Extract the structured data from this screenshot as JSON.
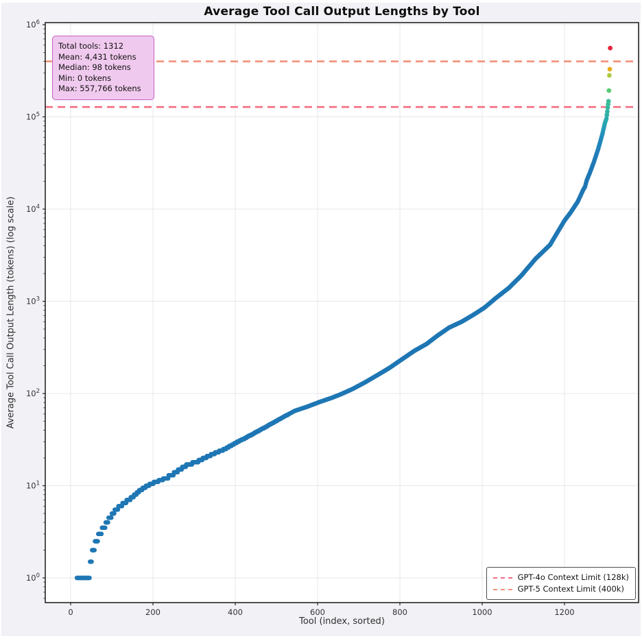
{
  "page": {
    "figure_background": "#f1f1f6",
    "plot_background": "#ffffff"
  },
  "chart_data": {
    "type": "scatter",
    "title": "Average Tool Call Output Lengths by Tool",
    "xlabel": "Tool (index, sorted)",
    "ylabel": "Average Tool Call Output Length (tokens) (log scale)",
    "x_ticks": [
      0,
      200,
      400,
      600,
      800,
      1000,
      1200
    ],
    "y_tick_exponents": [
      0,
      1,
      2,
      3,
      4,
      5,
      6
    ],
    "y_scale": "log",
    "grid": true,
    "xlim": [
      -65.5,
      1376.5
    ],
    "ylim_exponents": [
      -0.268,
      6.022
    ],
    "total_tools": 1312,
    "mean_tokens": 4431,
    "median_tokens": 98,
    "min_tokens": 0,
    "max_tokens": 557766,
    "default_point_color": "#1f77b4",
    "anchors": [
      [
        15,
        1
      ],
      [
        45,
        1
      ],
      [
        48,
        1.5
      ],
      [
        55,
        2
      ],
      [
        62,
        2.5
      ],
      [
        70,
        3
      ],
      [
        80,
        3.5
      ],
      [
        95,
        4.5
      ],
      [
        110,
        5.5
      ],
      [
        130,
        6.5
      ],
      [
        150,
        7.5
      ],
      [
        170,
        9
      ],
      [
        195,
        10.5
      ],
      [
        220,
        11.5
      ],
      [
        245,
        13
      ],
      [
        265,
        15
      ],
      [
        285,
        17
      ],
      [
        305,
        18
      ],
      [
        330,
        20.5
      ],
      [
        355,
        23
      ],
      [
        375,
        25
      ],
      [
        400,
        29
      ],
      [
        425,
        33
      ],
      [
        455,
        39
      ],
      [
        480,
        45
      ],
      [
        515,
        55
      ],
      [
        545,
        65
      ],
      [
        575,
        72
      ],
      [
        605,
        81
      ],
      [
        635,
        90
      ],
      [
        656,
        98
      ],
      [
        685,
        112
      ],
      [
        715,
        132
      ],
      [
        745,
        158
      ],
      [
        775,
        190
      ],
      [
        805,
        235
      ],
      [
        835,
        290
      ],
      [
        865,
        345
      ],
      [
        890,
        420
      ],
      [
        920,
        520
      ],
      [
        950,
        600
      ],
      [
        980,
        720
      ],
      [
        1005,
        850
      ],
      [
        1035,
        1100
      ],
      [
        1065,
        1400
      ],
      [
        1095,
        1900
      ],
      [
        1130,
        2900
      ],
      [
        1165,
        4100
      ],
      [
        1182,
        5500
      ],
      [
        1200,
        7500
      ],
      [
        1215,
        9200
      ],
      [
        1232,
        12000
      ],
      [
        1245,
        16000
      ],
      [
        1250,
        17500
      ],
      [
        1254,
        20500
      ],
      [
        1262,
        25000
      ],
      [
        1272,
        33000
      ],
      [
        1282,
        45000
      ],
      [
        1292,
        65000
      ],
      [
        1298,
        85000
      ],
      [
        1302,
        96000
      ]
    ],
    "special_points": [
      [
        1303,
        105000
      ],
      [
        1304,
        114000
      ],
      [
        1305,
        126000
      ],
      [
        1306,
        137000
      ],
      [
        1307,
        148000
      ],
      [
        1308,
        193000
      ],
      [
        1309,
        282000
      ],
      [
        1310,
        329000
      ],
      [
        1311,
        557766
      ]
    ],
    "color_stops": [
      [
        0.0,
        "#1f77b4"
      ],
      [
        0.05,
        "#1f77b4"
      ],
      [
        0.1,
        "#2287bf"
      ],
      [
        0.145,
        "#27a0b6"
      ],
      [
        0.19,
        "#2eb0a6"
      ],
      [
        0.27,
        "#3cbf97"
      ],
      [
        0.35,
        "#5bca74"
      ],
      [
        0.51,
        "#aecb3a"
      ],
      [
        0.6,
        "#f0a513"
      ],
      [
        1.0,
        "#e8243c"
      ]
    ],
    "reference_lines": [
      {
        "name": "gpt-4o-context-limit",
        "value": 128000,
        "color": "#f36c80",
        "label": "GPT-4o Context Limit (128k)"
      },
      {
        "name": "gpt-5-context-limit",
        "value": 400000,
        "color": "#f29179",
        "label": "GPT-5 Context Limit (400k)"
      }
    ],
    "stats_box": {
      "fill": "#f0c9ee",
      "border": "#c45fc4",
      "lines": [
        "Total tools: 1312",
        "Mean: 4,431 tokens",
        "Median: 98 tokens",
        "Min: 0 tokens",
        "Max: 557,766 tokens"
      ]
    },
    "legend": {
      "position": "lower right"
    }
  }
}
